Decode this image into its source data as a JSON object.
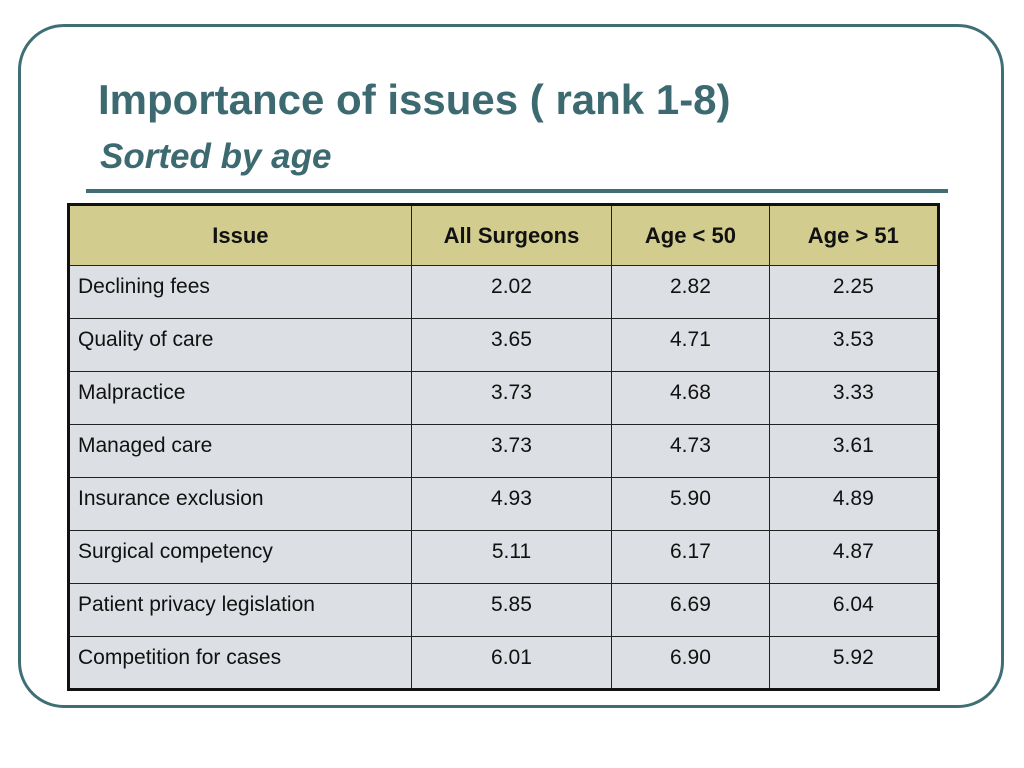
{
  "slide": {
    "title": "Importance of issues ( rank 1-8)",
    "subtitle": "Sorted by age",
    "colors": {
      "title": "#3c6a70",
      "frame": "#3f6f74",
      "header_bg": "#d2cd8f",
      "cell_bg": "#dcdfe3"
    }
  },
  "table": {
    "headers": [
      "Issue",
      "All Surgeons",
      "Age < 50",
      "Age > 51"
    ],
    "rows": [
      {
        "issue": "Declining fees",
        "all": "2.02",
        "under50": "2.82",
        "over51": "2.25"
      },
      {
        "issue": "Quality of care",
        "all": "3.65",
        "under50": "4.71",
        "over51": "3.53"
      },
      {
        "issue": "Malpractice",
        "all": "3.73",
        "under50": "4.68",
        "over51": "3.33"
      },
      {
        "issue": "Managed care",
        "all": "3.73",
        "under50": "4.73",
        "over51": "3.61"
      },
      {
        "issue": "Insurance exclusion",
        "all": "4.93",
        "under50": "5.90",
        "over51": "4.89"
      },
      {
        "issue": "Surgical competency",
        "all": "5.11",
        "under50": "6.17",
        "over51": "4.87"
      },
      {
        "issue": "Patient privacy legislation",
        "all": "5.85",
        "under50": "6.69",
        "over51": "6.04"
      },
      {
        "issue": "Competition for cases",
        "all": "6.01",
        "under50": "6.90",
        "over51": "5.92"
      }
    ]
  }
}
